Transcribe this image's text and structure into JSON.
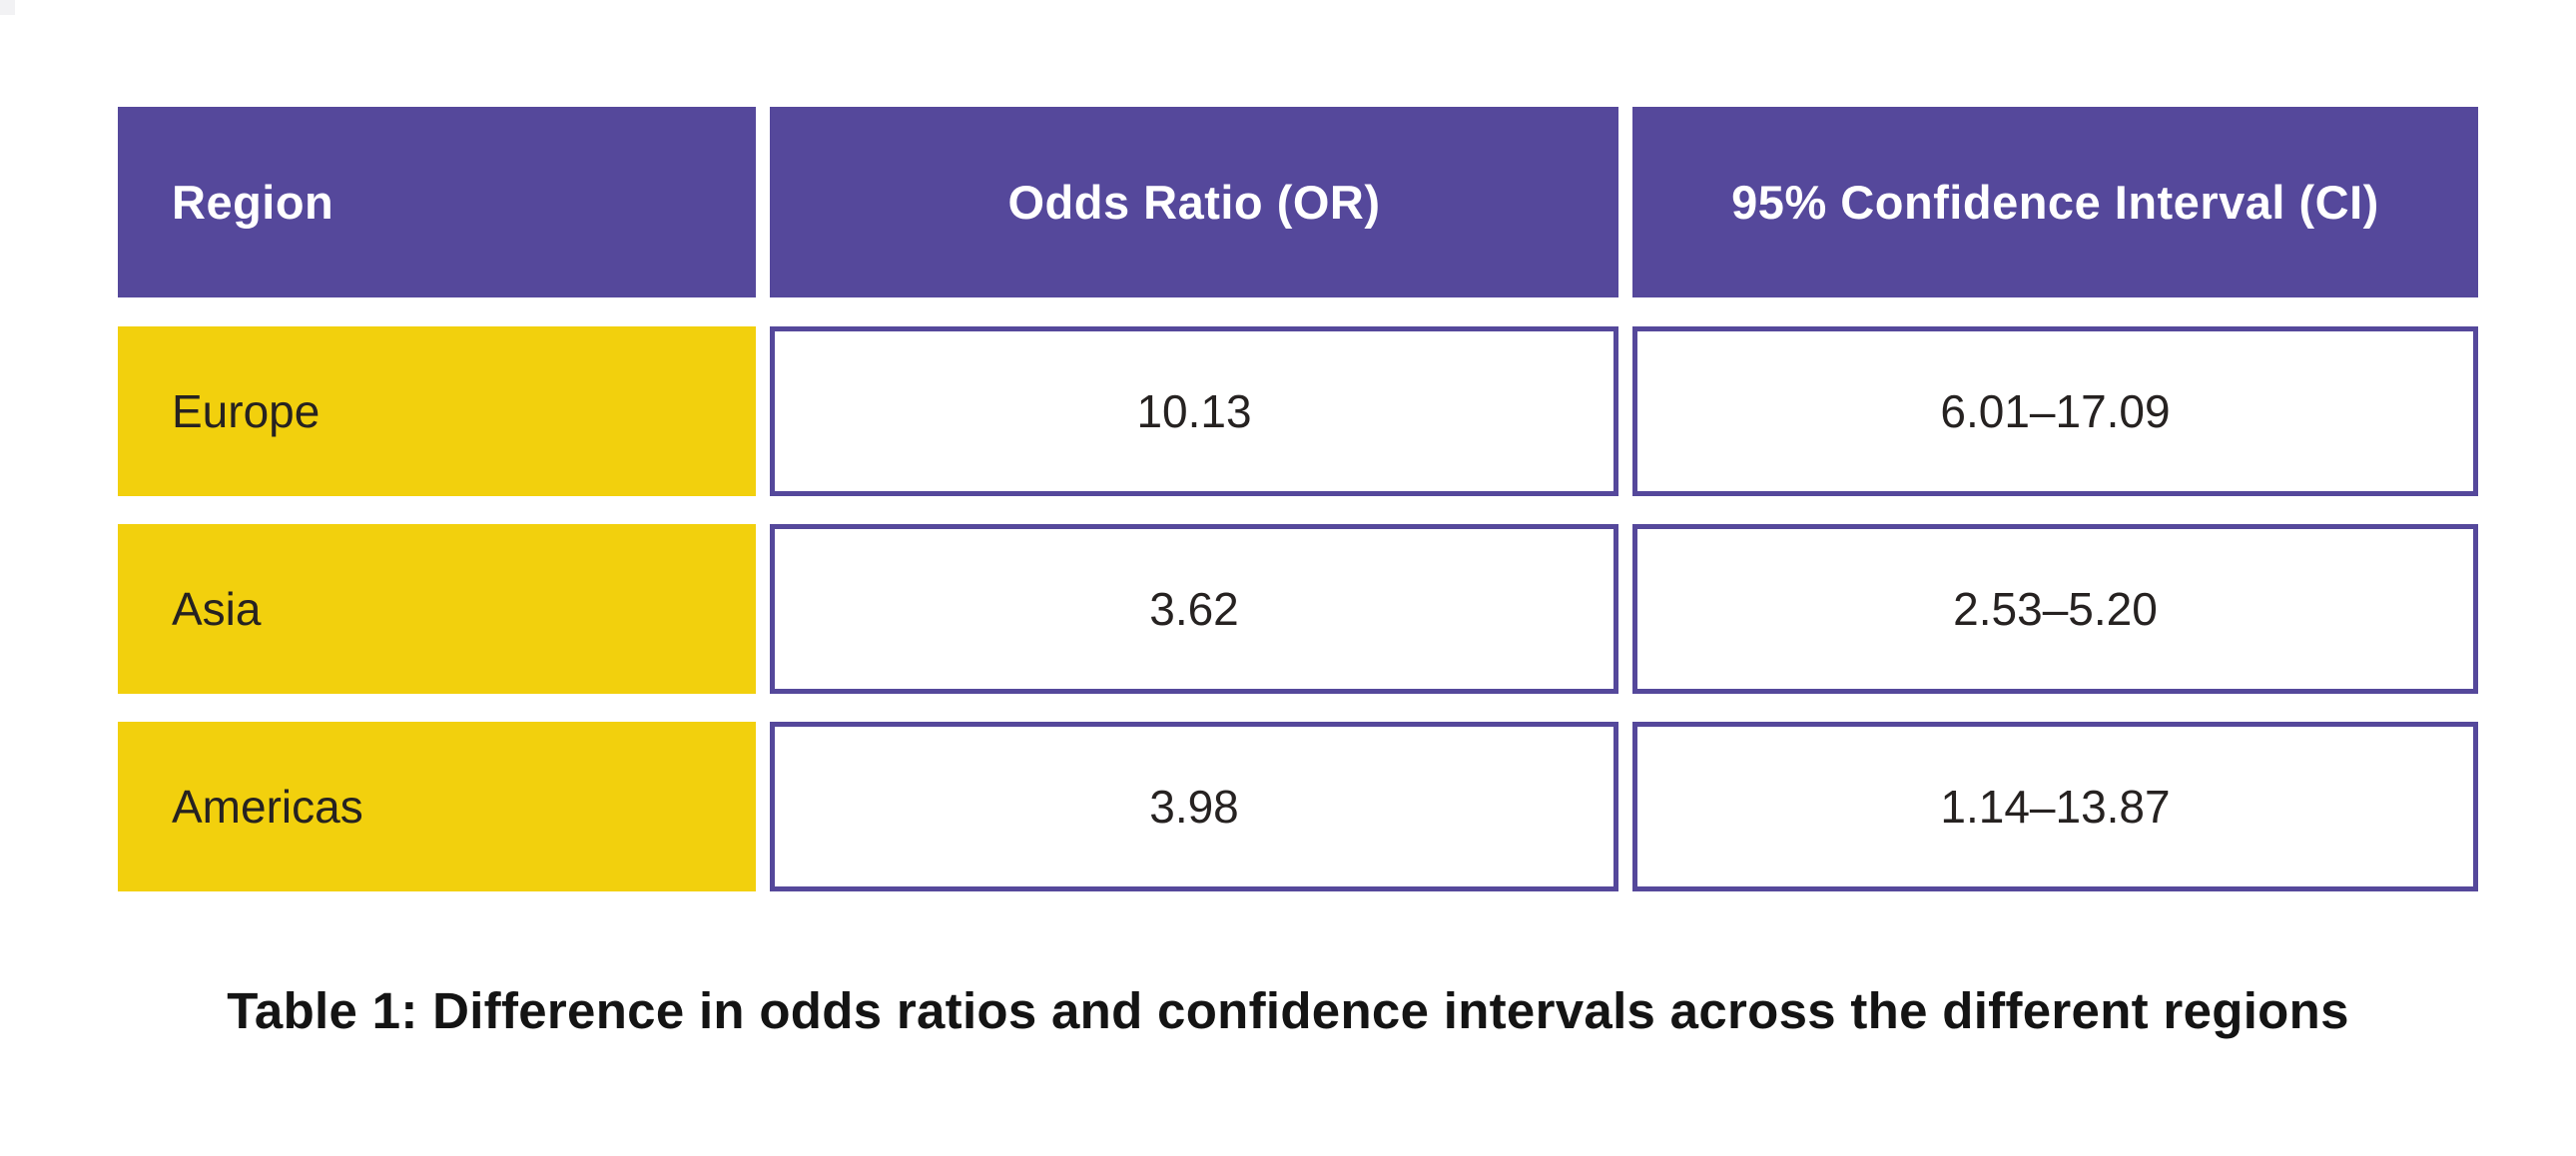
{
  "table": {
    "headers": [
      {
        "label": "Region"
      },
      {
        "label": "Odds Ratio (OR)"
      },
      {
        "label": "95% Confidence Interval (CI)"
      }
    ],
    "rows": [
      {
        "region": "Europe",
        "odds_ratio": "10.13",
        "confidence_interval": "6.01–17.09"
      },
      {
        "region": "Asia",
        "odds_ratio": "3.62",
        "confidence_interval": "2.53–5.20"
      },
      {
        "region": "Americas",
        "odds_ratio": "3.98",
        "confidence_interval": "1.14–13.87"
      }
    ]
  },
  "caption": "Table 1: Difference in odds ratios and confidence intervals across the different regions",
  "colors": {
    "header_background": "#55489B",
    "header_text": "#FFFFFF",
    "region_cell_background": "#F2D00D",
    "value_cell_border": "#55489B",
    "value_cell_background": "#FFFFFF",
    "body_text": "#262221",
    "caption_text": "#141414"
  },
  "chart_data": {
    "type": "table",
    "title": "Table 1: Difference in odds ratios and confidence intervals across the different regions",
    "columns": [
      "Region",
      "Odds Ratio (OR)",
      "95% Confidence Interval (CI)"
    ],
    "rows": [
      [
        "Europe",
        "10.13",
        "6.01–17.09"
      ],
      [
        "Asia",
        "3.62",
        "2.53–5.20"
      ],
      [
        "Americas",
        "3.98",
        "1.14–13.87"
      ]
    ],
    "odds_ratios": {
      "Europe": 10.13,
      "Asia": 3.62,
      "Americas": 3.98
    },
    "ci_low": {
      "Europe": 6.01,
      "Asia": 2.53,
      "Americas": 1.14
    },
    "ci_high": {
      "Europe": 17.09,
      "Asia": 5.2,
      "Americas": 13.87
    }
  }
}
